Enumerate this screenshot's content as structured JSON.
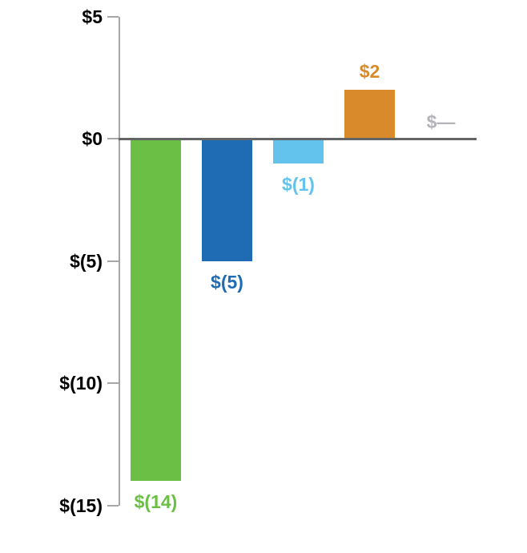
{
  "chart_data": {
    "type": "bar",
    "title": "",
    "xlabel": "",
    "ylabel": "",
    "values": [
      -14,
      -5,
      -1,
      2,
      0
    ],
    "bar_labels": [
      "$(14)",
      "$(5)",
      "$(1)",
      "$2",
      "$—"
    ],
    "bar_colors": [
      "#6abf44",
      "#1f6cb5",
      "#63c3ec",
      "#d98b2b",
      "#b3b3b8"
    ],
    "bar_color_names": [
      "green",
      "dark-blue",
      "light-blue",
      "orange",
      "gray"
    ],
    "y_ticks": [
      5,
      0,
      -5,
      -10,
      -15
    ],
    "y_tick_labels": [
      "$5",
      "$0",
      "$(5)",
      "$(10)",
      "$(15)"
    ],
    "ylim": [
      -15,
      5
    ],
    "grid": false,
    "legend": false,
    "zero_value_display": "$—"
  },
  "colors": {
    "background": "#ffffff",
    "axis_line": "#a6a6a6",
    "zero_baseline": "#636466",
    "tick_label_text": "#000000",
    "bar_green": "#6abf44",
    "bar_dark_blue": "#1f6cb5",
    "bar_light_blue": "#63c3ec",
    "bar_orange": "#d98b2b",
    "zero_label_gray": "#b3b3b8"
  }
}
